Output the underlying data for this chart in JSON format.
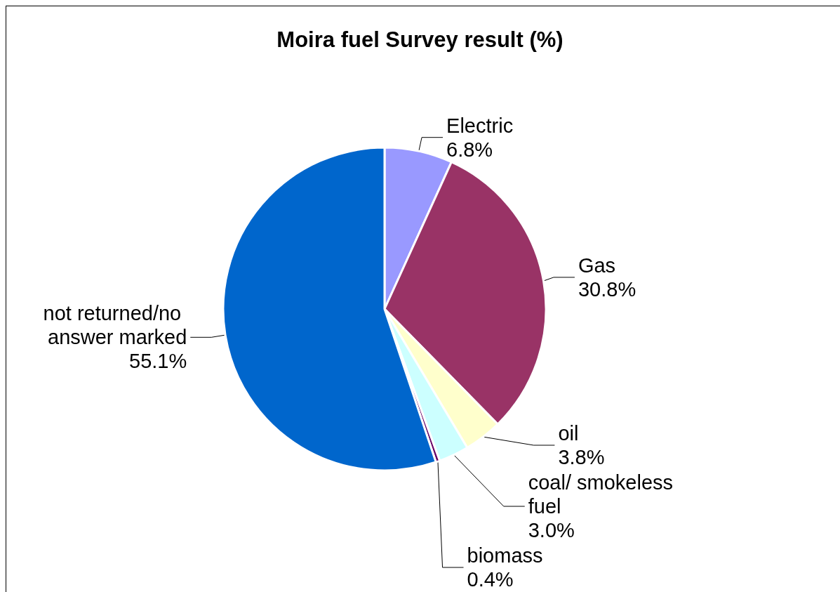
{
  "chart_data": {
    "type": "pie",
    "title": "Moira fuel Survey result (%)",
    "categories": [
      "Electric",
      "Gas",
      "oil",
      "coal/ smokeless fuel",
      "biomass",
      "not returned/no answer marked"
    ],
    "values": [
      6.8,
      30.8,
      3.8,
      3.0,
      0.4,
      55.1
    ],
    "colors": [
      "#9999ff",
      "#993366",
      "#ffffcc",
      "#ccffff",
      "#660066",
      "#0066cc"
    ],
    "value_labels": [
      "6.8%",
      "30.8%",
      "3.8%",
      "3.0%",
      "0.4%",
      "55.1%"
    ]
  }
}
